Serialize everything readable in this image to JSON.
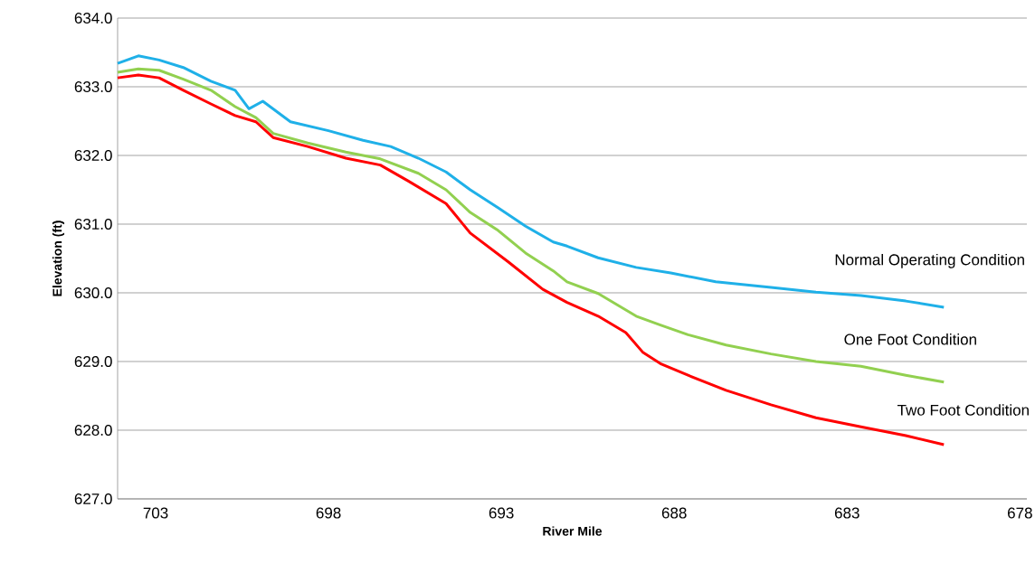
{
  "chart_data": {
    "type": "line",
    "xlabel": "River Mile",
    "ylabel": "Elevation (ft)",
    "xlim": [
      704.1,
      677.8
    ],
    "xticks": [
      703,
      698,
      693,
      688,
      683,
      678
    ],
    "ylim": [
      627,
      634
    ],
    "yticks": [
      {
        "value": 627,
        "label": "627.0"
      },
      {
        "value": 628,
        "label": "628.0"
      },
      {
        "value": 629,
        "label": "629.0"
      },
      {
        "value": 630,
        "label": "630.0"
      },
      {
        "value": 631,
        "label": "631.0"
      },
      {
        "value": 632,
        "label": "632.0"
      },
      {
        "value": 633,
        "label": "633.0"
      },
      {
        "value": 634,
        "label": "634.0"
      }
    ],
    "grid": "y",
    "legend": false,
    "marker": "none",
    "line_style": "solid",
    "series": [
      {
        "name": "Normal Operating Condition",
        "color": "#1fb0e8",
        "x": [
          704.1,
          703.5,
          702.9,
          702.2,
          701.4,
          700.7,
          700.3,
          699.9,
          699.1,
          698.0,
          697.0,
          696.2,
          695.4,
          694.6,
          693.9,
          693.1,
          692.3,
          691.5,
          691.1,
          690.2,
          689.1,
          688.1,
          686.8,
          685.2,
          683.9,
          682.6,
          681.3,
          680.2
        ],
        "values": [
          633.34,
          633.45,
          633.39,
          633.28,
          633.08,
          632.95,
          632.68,
          632.79,
          632.49,
          632.36,
          632.22,
          632.13,
          631.96,
          631.76,
          631.5,
          631.24,
          630.97,
          630.74,
          630.68,
          630.51,
          630.37,
          630.29,
          630.16,
          630.08,
          630.01,
          629.96,
          629.88,
          629.79
        ]
      },
      {
        "name": "One Foot Condition",
        "color": "#92d050",
        "x": [
          704.1,
          703.5,
          702.9,
          702.2,
          701.4,
          700.7,
          700.1,
          699.6,
          698.6,
          697.5,
          696.5,
          695.4,
          694.6,
          693.9,
          693.1,
          692.3,
          691.5,
          691.1,
          690.2,
          689.1,
          688.4,
          687.6,
          686.5,
          685.2,
          683.9,
          682.6,
          681.3,
          680.2
        ],
        "values": [
          633.21,
          633.26,
          633.24,
          633.11,
          632.95,
          632.71,
          632.55,
          632.32,
          632.18,
          632.05,
          631.95,
          631.74,
          631.5,
          631.17,
          630.91,
          630.58,
          630.32,
          630.16,
          629.99,
          629.66,
          629.53,
          629.39,
          629.24,
          629.11,
          629.0,
          628.93,
          628.8,
          628.7
        ]
      },
      {
        "name": "Two Foot Condition",
        "color": "#ff0000",
        "x": [
          704.1,
          703.5,
          702.9,
          702.2,
          701.4,
          700.7,
          700.1,
          699.6,
          698.6,
          697.5,
          696.5,
          695.7,
          694.6,
          693.9,
          692.8,
          691.8,
          691.1,
          690.2,
          689.4,
          688.9,
          688.4,
          687.6,
          686.5,
          685.2,
          683.9,
          682.6,
          681.3,
          680.2
        ],
        "values": [
          633.13,
          633.17,
          633.13,
          632.95,
          632.75,
          632.58,
          632.49,
          632.26,
          632.13,
          631.96,
          631.86,
          631.63,
          631.3,
          630.87,
          630.45,
          630.05,
          629.86,
          629.66,
          629.42,
          629.13,
          628.97,
          628.8,
          628.58,
          628.37,
          628.18,
          628.05,
          627.92,
          627.79
        ]
      }
    ]
  }
}
